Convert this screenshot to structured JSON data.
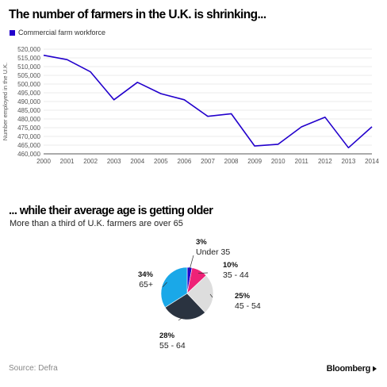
{
  "line_section": {
    "title": "The number of farmers in the U.K. is shrinking...",
    "legend_label": "Commercial farm workforce",
    "series_color": "#2200cc"
  },
  "pie_section": {
    "title": "... while their average age is getting older",
    "subtitle": "More than a third of U.K. farmers are over 65"
  },
  "footer": {
    "source": "Source: Defra",
    "brand": "Bloomberg"
  },
  "chart_data": [
    {
      "type": "line",
      "title": "The number of farmers in the U.K. is shrinking...",
      "xlabel": "",
      "ylabel": "Number employed in the U.K.",
      "x": [
        "2000",
        "2001",
        "2002",
        "2003",
        "2004",
        "2005",
        "2006",
        "2007",
        "2008",
        "2009",
        "2010",
        "2011",
        "2012",
        "2013",
        "2014"
      ],
      "series": [
        {
          "name": "Commercial farm workforce",
          "color": "#2200cc",
          "values": [
            516500,
            514000,
            507000,
            491000,
            501000,
            494500,
            491000,
            481500,
            483000,
            464500,
            465500,
            475500,
            481000,
            463500,
            475500
          ]
        }
      ],
      "ylim": [
        460000,
        520000
      ],
      "yticks": [
        460000,
        465000,
        470000,
        475000,
        480000,
        485000,
        490000,
        495000,
        500000,
        505000,
        510000,
        515000,
        520000
      ],
      "ytick_labels": [
        "460,000",
        "465,000",
        "470,000",
        "475,000",
        "480,000",
        "485,000",
        "490,000",
        "495,000",
        "500,000",
        "505,000",
        "510,000",
        "515,000",
        "520,000"
      ],
      "grid": true
    },
    {
      "type": "pie",
      "title": "... while their average age is getting older",
      "subtitle": "More than a third of U.K. farmers are over 65",
      "slices": [
        {
          "label": "Under 35",
          "percent_label": "3%",
          "value": 3,
          "color": "#2200cc"
        },
        {
          "label": "35 - 44",
          "percent_label": "10%",
          "value": 10,
          "color": "#ee2277"
        },
        {
          "label": "45 - 54",
          "percent_label": "25%",
          "value": 25,
          "color": "#dddddd"
        },
        {
          "label": "55 - 64",
          "percent_label": "28%",
          "value": 28,
          "color": "#2a3340"
        },
        {
          "label": "65+",
          "percent_label": "34%",
          "value": 34,
          "color": "#1aa8e8"
        }
      ]
    }
  ]
}
